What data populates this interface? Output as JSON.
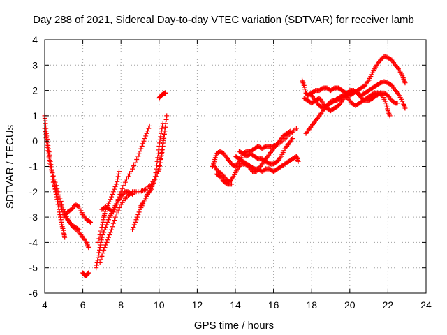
{
  "chart_data": {
    "type": "scatter",
    "title": "Day 288 of 2021, Sidereal Day-to-day VTEC variation (SDTVAR) for receiver lamb",
    "xlabel": "GPS time / hours",
    "ylabel": "SDTVAR / TECUs",
    "xlim": [
      4,
      24
    ],
    "ylim": [
      -6,
      4
    ],
    "xticks": [
      "4",
      "6",
      "8",
      "10",
      "12",
      "14",
      "16",
      "18",
      "20",
      "22",
      "24"
    ],
    "yticks": [
      "4",
      "3",
      "2",
      "1",
      "0",
      "-1",
      "-2",
      "-3",
      "-4",
      "-5",
      "-6"
    ],
    "grid": true,
    "marker": "+",
    "color": "#ff0000",
    "series": [
      {
        "points": [
          [
            4.0,
            1.0
          ],
          [
            4.05,
            0.6
          ],
          [
            4.1,
            0.2
          ],
          [
            4.2,
            -0.3
          ],
          [
            4.3,
            -0.8
          ],
          [
            4.4,
            -1.3
          ],
          [
            4.5,
            -1.7
          ],
          [
            4.6,
            -2.1
          ],
          [
            4.7,
            -2.5
          ],
          [
            4.8,
            -2.9
          ],
          [
            4.9,
            -3.3
          ],
          [
            5.0,
            -3.6
          ],
          [
            5.05,
            -3.8
          ]
        ]
      },
      {
        "points": [
          [
            4.0,
            0.5
          ],
          [
            4.1,
            0.0
          ],
          [
            4.2,
            -0.5
          ],
          [
            4.3,
            -1.0
          ],
          [
            4.5,
            -1.5
          ],
          [
            4.7,
            -2.0
          ],
          [
            4.9,
            -2.5
          ],
          [
            5.1,
            -2.9
          ],
          [
            5.3,
            -3.2
          ],
          [
            5.5,
            -3.4
          ],
          [
            5.8,
            -3.6
          ],
          [
            6.0,
            -3.8
          ],
          [
            6.2,
            -4.0
          ],
          [
            6.3,
            -4.2
          ]
        ]
      },
      {
        "points": [
          [
            4.4,
            -1.5
          ],
          [
            4.6,
            -2.0
          ],
          [
            4.8,
            -2.5
          ],
          [
            5.0,
            -2.9
          ],
          [
            5.2,
            -3.1
          ],
          [
            5.4,
            -3.3
          ],
          [
            5.6,
            -3.4
          ],
          [
            5.8,
            -3.5
          ]
        ]
      },
      {
        "points": [
          [
            5.0,
            -3.0
          ],
          [
            5.2,
            -2.8
          ],
          [
            5.4,
            -2.7
          ],
          [
            5.6,
            -2.5
          ],
          [
            5.8,
            -2.6
          ],
          [
            6.0,
            -2.9
          ],
          [
            6.2,
            -3.1
          ],
          [
            6.4,
            -3.2
          ]
        ]
      },
      {
        "points": [
          [
            6.0,
            -5.2
          ],
          [
            6.1,
            -5.3
          ],
          [
            6.2,
            -5.3
          ],
          [
            6.3,
            -5.2
          ]
        ]
      },
      {
        "points": [
          [
            6.7,
            -5.0
          ],
          [
            6.8,
            -4.6
          ],
          [
            6.9,
            -4.2
          ],
          [
            7.0,
            -3.8
          ],
          [
            7.2,
            -3.4
          ],
          [
            7.4,
            -3.0
          ],
          [
            7.6,
            -2.7
          ],
          [
            7.8,
            -2.4
          ],
          [
            8.0,
            -2.0
          ],
          [
            8.3,
            -1.5
          ],
          [
            8.6,
            -1.1
          ],
          [
            8.9,
            -0.6
          ],
          [
            9.1,
            -0.2
          ],
          [
            9.3,
            0.2
          ],
          [
            9.5,
            0.6
          ]
        ]
      },
      {
        "points": [
          [
            6.9,
            -4.8
          ],
          [
            7.1,
            -4.3
          ],
          [
            7.3,
            -3.9
          ],
          [
            7.5,
            -3.5
          ],
          [
            7.7,
            -3.0
          ],
          [
            8.0,
            -2.5
          ],
          [
            8.3,
            -2.2
          ],
          [
            8.6,
            -2.0
          ],
          [
            9.0,
            -2.0
          ],
          [
            9.3,
            -1.9
          ],
          [
            9.6,
            -1.7
          ],
          [
            9.9,
            -1.3
          ],
          [
            10.1,
            -0.7
          ],
          [
            10.2,
            -0.2
          ],
          [
            10.3,
            0.4
          ],
          [
            10.4,
            1.0
          ]
        ]
      },
      {
        "points": [
          [
            6.8,
            -4.0
          ],
          [
            7.0,
            -3.4
          ],
          [
            7.1,
            -3.0
          ],
          [
            7.2,
            -2.7
          ],
          [
            7.4,
            -2.4
          ],
          [
            7.6,
            -2.0
          ],
          [
            7.8,
            -1.6
          ],
          [
            7.9,
            -1.2
          ]
        ]
      },
      {
        "points": [
          [
            7.0,
            -2.7
          ],
          [
            7.2,
            -2.6
          ],
          [
            7.4,
            -2.7
          ],
          [
            7.6,
            -2.8
          ],
          [
            7.8,
            -2.4
          ],
          [
            8.0,
            -2.2
          ],
          [
            8.2,
            -2.0
          ],
          [
            8.4,
            -2.0
          ],
          [
            8.6,
            -2.1
          ]
        ]
      },
      {
        "points": [
          [
            8.6,
            -3.5
          ],
          [
            8.8,
            -3.1
          ],
          [
            9.0,
            -2.7
          ],
          [
            9.2,
            -2.4
          ],
          [
            9.4,
            -2.1
          ],
          [
            9.6,
            -1.8
          ],
          [
            9.8,
            -1.5
          ],
          [
            10.0,
            -1.1
          ],
          [
            10.1,
            -0.6
          ],
          [
            10.2,
            -0.1
          ],
          [
            10.3,
            0.4
          ]
        ]
      },
      {
        "points": [
          [
            9.0,
            -2.6
          ],
          [
            9.2,
            -2.4
          ],
          [
            9.4,
            -2.1
          ],
          [
            9.6,
            -1.9
          ],
          [
            9.8,
            -1.4
          ],
          [
            9.9,
            -0.8
          ],
          [
            10.0,
            -0.2
          ],
          [
            10.1,
            0.3
          ],
          [
            10.2,
            0.7
          ]
        ]
      },
      {
        "points": [
          [
            10.0,
            1.7
          ],
          [
            10.1,
            1.8
          ],
          [
            10.2,
            1.85
          ],
          [
            10.3,
            1.9
          ],
          [
            10.35,
            1.9
          ]
        ]
      },
      {
        "points": [
          [
            12.8,
            -1.0
          ],
          [
            12.9,
            -0.8
          ],
          [
            13.0,
            -0.5
          ],
          [
            13.2,
            -0.4
          ],
          [
            13.4,
            -0.5
          ],
          [
            13.6,
            -0.7
          ],
          [
            13.8,
            -0.9
          ],
          [
            14.0,
            -1.0
          ],
          [
            14.2,
            -0.8
          ],
          [
            14.4,
            -0.5
          ],
          [
            14.6,
            -0.4
          ],
          [
            14.8,
            -0.4
          ],
          [
            15.0,
            -0.3
          ],
          [
            15.2,
            -0.2
          ],
          [
            15.4,
            -0.3
          ],
          [
            15.6,
            -0.2
          ],
          [
            15.8,
            -0.2
          ],
          [
            16.0,
            -0.2
          ],
          [
            16.3,
            -0.1
          ],
          [
            16.6,
            0.1
          ],
          [
            16.9,
            0.3
          ],
          [
            17.2,
            0.5
          ]
        ]
      },
      {
        "points": [
          [
            12.9,
            -1.0
          ],
          [
            13.1,
            -1.2
          ],
          [
            13.3,
            -1.3
          ],
          [
            13.5,
            -1.5
          ],
          [
            13.7,
            -1.6
          ],
          [
            13.9,
            -1.4
          ],
          [
            14.1,
            -1.1
          ],
          [
            14.3,
            -0.9
          ],
          [
            14.5,
            -0.9
          ],
          [
            14.7,
            -1.0
          ],
          [
            14.9,
            -1.2
          ],
          [
            15.1,
            -1.2
          ],
          [
            15.3,
            -1.0
          ],
          [
            15.5,
            -0.8
          ],
          [
            15.7,
            -0.6
          ],
          [
            15.9,
            -0.4
          ],
          [
            16.1,
            -0.2
          ],
          [
            16.3,
            0.0
          ],
          [
            16.5,
            0.2
          ],
          [
            16.7,
            0.3
          ],
          [
            16.9,
            0.4
          ]
        ]
      },
      {
        "points": [
          [
            13.0,
            -1.3
          ],
          [
            13.2,
            -1.4
          ],
          [
            13.4,
            -1.6
          ],
          [
            13.6,
            -1.7
          ],
          [
            13.8,
            -1.7
          ]
        ]
      },
      {
        "points": [
          [
            14.0,
            -0.6
          ],
          [
            14.2,
            -0.7
          ],
          [
            14.4,
            -0.8
          ],
          [
            14.6,
            -0.9
          ],
          [
            14.8,
            -1.0
          ],
          [
            15.0,
            -1.1
          ],
          [
            15.2,
            -1.1
          ],
          [
            15.4,
            -1.2
          ],
          [
            15.6,
            -1.1
          ],
          [
            15.8,
            -1.1
          ],
          [
            16.0,
            -1.2
          ],
          [
            16.2,
            -1.1
          ],
          [
            16.4,
            -1.0
          ],
          [
            16.6,
            -0.9
          ],
          [
            16.8,
            -0.8
          ],
          [
            17.0,
            -0.7
          ],
          [
            17.2,
            -0.6
          ],
          [
            17.3,
            -0.8
          ]
        ]
      },
      {
        "points": [
          [
            14.2,
            -0.4
          ],
          [
            14.4,
            -0.5
          ],
          [
            14.6,
            -0.6
          ],
          [
            14.8,
            -0.5
          ],
          [
            15.0,
            -0.6
          ],
          [
            15.2,
            -0.7
          ],
          [
            15.4,
            -0.7
          ],
          [
            15.6,
            -0.8
          ],
          [
            15.8,
            -0.9
          ],
          [
            16.0,
            -0.9
          ],
          [
            16.2,
            -0.8
          ],
          [
            16.4,
            -0.6
          ],
          [
            16.6,
            -0.3
          ],
          [
            16.8,
            -0.1
          ],
          [
            17.0,
            0.1
          ]
        ]
      },
      {
        "points": [
          [
            17.5,
            2.4
          ],
          [
            17.6,
            2.2
          ],
          [
            17.7,
            1.9
          ],
          [
            17.8,
            1.8
          ],
          [
            18.0,
            1.9
          ],
          [
            18.2,
            2.0
          ],
          [
            18.4,
            2.0
          ],
          [
            18.6,
            2.1
          ],
          [
            18.8,
            2.1
          ],
          [
            19.0,
            2.0
          ],
          [
            19.2,
            2.1
          ],
          [
            19.4,
            2.1
          ],
          [
            19.6,
            2.0
          ],
          [
            19.8,
            1.9
          ],
          [
            20.0,
            1.8
          ],
          [
            20.2,
            1.9
          ],
          [
            20.4,
            2.0
          ],
          [
            20.6,
            2.1
          ],
          [
            20.8,
            2.2
          ],
          [
            21.0,
            2.4
          ],
          [
            21.2,
            2.7
          ],
          [
            21.4,
            3.0
          ],
          [
            21.6,
            3.2
          ],
          [
            21.8,
            3.35
          ],
          [
            22.0,
            3.3
          ],
          [
            22.2,
            3.2
          ],
          [
            22.4,
            3.0
          ],
          [
            22.6,
            2.8
          ],
          [
            22.8,
            2.5
          ],
          [
            22.9,
            2.3
          ]
        ]
      },
      {
        "points": [
          [
            17.6,
            1.7
          ],
          [
            17.8,
            1.6
          ],
          [
            18.0,
            1.5
          ],
          [
            18.2,
            1.6
          ],
          [
            18.4,
            1.7
          ],
          [
            18.6,
            1.5
          ],
          [
            18.8,
            1.3
          ],
          [
            19.0,
            1.2
          ],
          [
            19.2,
            1.3
          ],
          [
            19.4,
            1.4
          ],
          [
            19.6,
            1.6
          ],
          [
            19.8,
            1.8
          ],
          [
            20.0,
            2.0
          ],
          [
            20.2,
            2.0
          ],
          [
            20.4,
            1.9
          ],
          [
            20.6,
            1.8
          ],
          [
            20.8,
            1.9
          ],
          [
            21.0,
            2.0
          ],
          [
            21.2,
            2.1
          ],
          [
            21.4,
            2.2
          ],
          [
            21.6,
            2.3
          ],
          [
            21.8,
            2.35
          ],
          [
            22.0,
            2.3
          ],
          [
            22.2,
            2.2
          ],
          [
            22.4,
            2.0
          ],
          [
            22.6,
            1.8
          ],
          [
            22.8,
            1.5
          ],
          [
            22.9,
            1.3
          ]
        ]
      },
      {
        "points": [
          [
            17.7,
            0.3
          ],
          [
            17.9,
            0.5
          ],
          [
            18.1,
            0.7
          ],
          [
            18.3,
            0.9
          ],
          [
            18.5,
            1.1
          ],
          [
            18.7,
            1.3
          ],
          [
            18.9,
            1.5
          ],
          [
            19.1,
            1.6
          ],
          [
            19.3,
            1.6
          ],
          [
            19.5,
            1.7
          ],
          [
            19.7,
            1.8
          ],
          [
            19.9,
            1.7
          ],
          [
            20.1,
            1.5
          ],
          [
            20.3,
            1.4
          ],
          [
            20.5,
            1.5
          ],
          [
            20.7,
            1.6
          ],
          [
            20.9,
            1.7
          ],
          [
            21.1,
            1.8
          ],
          [
            21.3,
            1.9
          ],
          [
            21.5,
            1.9
          ],
          [
            21.7,
            1.8
          ],
          [
            21.9,
            1.5
          ],
          [
            22.0,
            1.2
          ],
          [
            22.1,
            1.0
          ]
        ]
      },
      {
        "points": [
          [
            18.0,
            1.8
          ],
          [
            18.2,
            1.6
          ],
          [
            18.4,
            1.4
          ],
          [
            18.6,
            1.3
          ],
          [
            18.8,
            1.4
          ],
          [
            19.0,
            1.5
          ],
          [
            19.2,
            1.6
          ],
          [
            19.4,
            1.7
          ],
          [
            19.6,
            1.8
          ],
          [
            19.8,
            1.8
          ],
          [
            20.0,
            1.9
          ],
          [
            20.2,
            2.0
          ],
          [
            20.4,
            1.9
          ],
          [
            20.6,
            1.7
          ],
          [
            20.8,
            1.6
          ],
          [
            21.0,
            1.6
          ],
          [
            21.2,
            1.7
          ],
          [
            21.4,
            1.8
          ],
          [
            21.6,
            1.9
          ],
          [
            21.8,
            1.9
          ],
          [
            22.0,
            1.8
          ],
          [
            22.2,
            1.6
          ],
          [
            22.4,
            1.5
          ],
          [
            22.5,
            1.5
          ]
        ]
      }
    ]
  }
}
